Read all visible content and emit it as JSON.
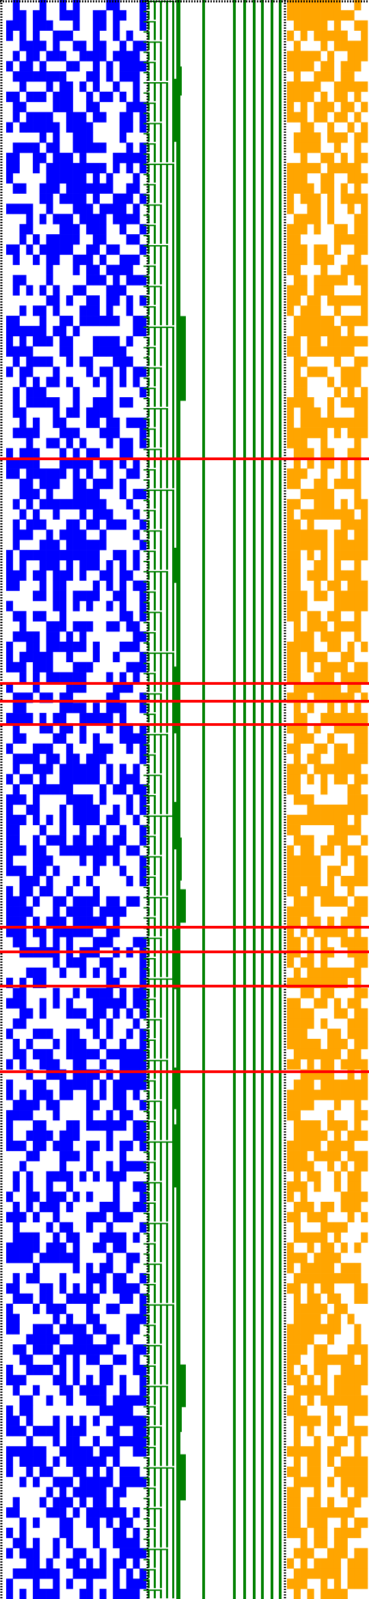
{
  "colors": {
    "background": "#ffffff",
    "left_field": "#0000ff",
    "tree": "#008000",
    "right_field": "#ffa500",
    "highlight": "#ff0000",
    "frame_dots": "#000000"
  },
  "pattern": {
    "rows": 157,
    "left_cols": 21,
    "right_cols": 12,
    "left_fill_ratio": 0.52,
    "right_fill_ratio": 0.62,
    "highlighted_rows": [
      29,
      44,
      45,
      47,
      60,
      62,
      64,
      69
    ],
    "seed": 1729
  },
  "tree": {
    "vertical_lines": 8,
    "branch_levels": 5
  }
}
